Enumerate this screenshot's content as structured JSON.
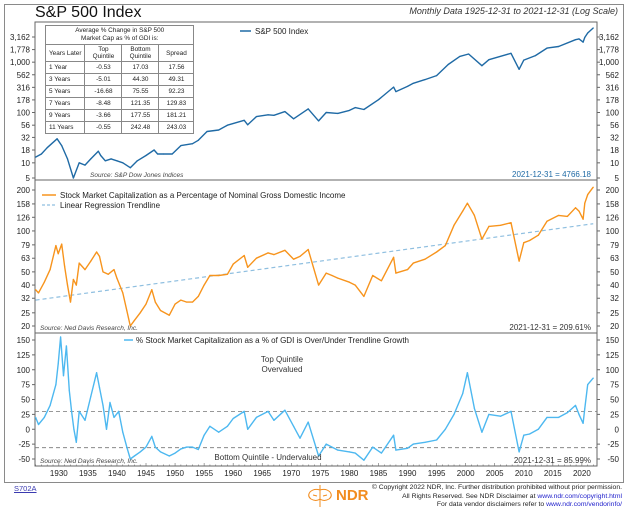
{
  "header": {
    "title": "S&P 500 Index",
    "subtitle": "Monthly Data 1925-12-31 to 2021-12-31 (Log Scale)"
  },
  "table": {
    "caption_line1": "Average % Change in S&P 500",
    "caption_line2": "Market Cap as % of GDI is:",
    "headers": [
      "Years Later",
      "Top Quintile",
      "Bottom Quintile",
      "Spread"
    ],
    "rows": [
      [
        "1 Year",
        "-0.53",
        "17.03",
        "17.56"
      ],
      [
        "3 Years",
        "-5.01",
        "44.30",
        "49.31"
      ],
      [
        "5 Years",
        "-16.68",
        "75.55",
        "92.23"
      ],
      [
        "7 Years",
        "-8.48",
        "121.35",
        "129.83"
      ],
      [
        "9 Years",
        "-3.66",
        "177.55",
        "181.21"
      ],
      [
        "11 Years",
        "-0.55",
        "242.48",
        "243.03"
      ]
    ]
  },
  "footer": {
    "chart_id": "S702A",
    "logo": "NDR",
    "copyright_line1": "© Copyright 2022 NDR, Inc. Further distribution prohibited without prior permission.",
    "copyright_line2_prefix": "All Rights Reserved. See NDR Disclaimer at ",
    "copyright_line2_link": "www.ndr.com/copyright.html",
    "copyright_line3_prefix": "For data vendor disclaimers refer to ",
    "copyright_line3_link": "www.ndr.com/vendorinfo/"
  },
  "colors": {
    "spx": "#1f6aa5",
    "mktcap": "#f7941d",
    "trend": "#8fbfe0",
    "deviation": "#4db8f0",
    "frame": "#8a8a8a"
  },
  "chart_data": [
    {
      "type": "line",
      "title": "S&P 500 Index",
      "scale": "log",
      "legend": [
        "S&P 500 Index"
      ],
      "legend_position": "top-center",
      "source": "Source: S&P Dow Jones Indices",
      "last_value_label": "2021-12-31 = 4766.18",
      "y_ticks": [
        5,
        10,
        18,
        32,
        56,
        100,
        178,
        316,
        562,
        1000,
        1778,
        3162
      ],
      "y_tick_labels": [
        "5",
        "10",
        "18",
        "32",
        "56",
        "100",
        "178",
        "316",
        "562",
        "1,000",
        "1,778",
        "3,162"
      ],
      "ylim": [
        4.2,
        5600
      ],
      "x": [
        1926,
        1927,
        1928,
        1929.7,
        1930.5,
        1931.5,
        1932.5,
        1933.5,
        1934.5,
        1935.5,
        1936.8,
        1937.2,
        1938,
        1939,
        1940,
        1941,
        1942.3,
        1943.5,
        1945,
        1946.4,
        1947,
        1948,
        1949.5,
        1951,
        1953,
        1954,
        1955.5,
        1957.5,
        1959,
        1961.9,
        1962.5,
        1964,
        1966,
        1967,
        1968.9,
        1970.4,
        1972.9,
        1974.7,
        1976,
        1978,
        1980,
        1981,
        1982.5,
        1985,
        1987.6,
        1988,
        1990,
        1991,
        1993,
        1995,
        1997,
        1999,
        2000.5,
        2002.8,
        2004,
        2007.8,
        2009.2,
        2010,
        2012,
        2014,
        2016,
        2018.9,
        2019.5,
        2020.2,
        2020.5,
        2021,
        2021.95
      ],
      "y": [
        13,
        15,
        20,
        30,
        22,
        12,
        5,
        10,
        9,
        12,
        17,
        14,
        11,
        12,
        11,
        10,
        8,
        11,
        14,
        18,
        15,
        15,
        15,
        22,
        24,
        28,
        42,
        45,
        56,
        70,
        57,
        83,
        90,
        88,
        104,
        75,
        118,
        68,
        100,
        96,
        110,
        125,
        115,
        180,
        320,
        260,
        330,
        380,
        450,
        540,
        900,
        1300,
        1450,
        850,
        1120,
        1500,
        720,
        1100,
        1350,
        1900,
        2050,
        2800,
        2900,
        2500,
        3100,
        3800,
        4766
      ]
    },
    {
      "type": "line",
      "title": "Stock Market Capitalization as a Percentage of Nominal Gross Domestic Income",
      "scale": "log",
      "legend": [
        "Stock Market Capitalization as a Percentage of Nominal Gross Domestic Income",
        "Linear Regression Trendline"
      ],
      "legend_position": "top-left",
      "source": "Source: Ned Davis Research, Inc.",
      "last_value_label": "2021-12-31 = 209.61%",
      "y_ticks": [
        20,
        25,
        32,
        40,
        50,
        63,
        79,
        100,
        126,
        158,
        200
      ],
      "y_tick_labels": [
        "20",
        "25",
        "32",
        "40",
        "50",
        "63",
        "79",
        "100",
        "126",
        "158",
        "200"
      ],
      "ylim": [
        18.5,
        215
      ],
      "trendline": {
        "x": [
          1926,
          2021.95
        ],
        "y": [
          31,
          113
        ]
      },
      "x": [
        1926,
        1926.5,
        1927.5,
        1928.5,
        1929.5,
        1929.9,
        1930.5,
        1931,
        1931.5,
        1932,
        1932.5,
        1933,
        1933.5,
        1934.5,
        1935.5,
        1936.5,
        1937,
        1937.6,
        1938.5,
        1939.5,
        1940,
        1941,
        1941.7,
        1942.3,
        1943,
        1944,
        1945,
        1946,
        1946.6,
        1947.5,
        1949,
        1950,
        1951,
        1952,
        1953,
        1954,
        1955,
        1956,
        1957.5,
        1959,
        1960,
        1961.9,
        1962.5,
        1964,
        1966,
        1967,
        1968.9,
        1970.4,
        1971.5,
        1972.9,
        1974.7,
        1976,
        1977,
        1978,
        1980,
        1981,
        1982.5,
        1984,
        1985.5,
        1987.6,
        1988,
        1990,
        1991,
        1993,
        1995,
        1996.5,
        1998,
        1999.5,
        2000.3,
        2001.5,
        2002.8,
        2004,
        2006,
        2007.8,
        2009.2,
        2010,
        2011,
        2012.5,
        2014,
        2016,
        2017.5,
        2018.9,
        2019.5,
        2020.2,
        2020.5,
        2021,
        2021.95
      ],
      "y": [
        37,
        35,
        42,
        52,
        78,
        68,
        80,
        55,
        40,
        30,
        44,
        40,
        58,
        52,
        60,
        70,
        65,
        50,
        48,
        52,
        45,
        35,
        26,
        20,
        22,
        25,
        29,
        37,
        30,
        26,
        24,
        29,
        31,
        30,
        30,
        33,
        40,
        47,
        47,
        48,
        57,
        66,
        54,
        63,
        69,
        67,
        72,
        62,
        65,
        73,
        40,
        49,
        47,
        45,
        42,
        40,
        33,
        47,
        43,
        64,
        49,
        52,
        58,
        62,
        70,
        78,
        110,
        140,
        160,
        130,
        87,
        108,
        110,
        115,
        60,
        82,
        85,
        93,
        118,
        130,
        128,
        148,
        140,
        122,
        160,
        185,
        209.61
      ]
    },
    {
      "type": "line",
      "title": "% Stock Market Capitalization as a % of GDI is Over/Under Trendline Growth",
      "scale": "linear",
      "legend": [
        "% Stock Market Capitalization as a % of GDI is Over/Under Trendline Growth"
      ],
      "legend_position": "top-center",
      "source": "Source: Ned Davis Research, Inc.",
      "last_value_label": "2021-12-31 = 85.99%",
      "annotations": [
        "Top Quintile",
        "Overvalued",
        "Bottom Quintile - Undervalued"
      ],
      "reference_lines": [
        {
          "y": 30,
          "style": "dashed"
        },
        {
          "y": -31,
          "style": "dashed"
        }
      ],
      "y_ticks": [
        -50,
        -25,
        0,
        25,
        50,
        75,
        100,
        125,
        150
      ],
      "y_tick_labels": [
        "-50",
        "-25",
        "0",
        "25",
        "50",
        "75",
        "100",
        "125",
        "150"
      ],
      "ylim": [
        -55,
        160
      ],
      "x_ticks": [
        1930,
        1935,
        1940,
        1945,
        1950,
        1955,
        1960,
        1965,
        1970,
        1975,
        1980,
        1985,
        1990,
        1995,
        2000,
        2005,
        2010,
        2015,
        2020
      ],
      "xlim": [
        1925.9,
        2022.6
      ],
      "x": [
        1926,
        1926.5,
        1927.5,
        1928.5,
        1929.5,
        1929.9,
        1930.3,
        1930.8,
        1931.3,
        1931.8,
        1932.2,
        1932.6,
        1933,
        1933.5,
        1934.5,
        1935.5,
        1936.5,
        1937,
        1937.6,
        1938.2,
        1938.8,
        1939.5,
        1940.3,
        1941,
        1941.7,
        1942.3,
        1943,
        1944,
        1945,
        1946,
        1946.6,
        1947.5,
        1949,
        1950,
        1951,
        1952,
        1953,
        1954,
        1955,
        1956,
        1957.5,
        1959,
        1960,
        1961.9,
        1962.5,
        1964,
        1966,
        1967,
        1968.9,
        1970.4,
        1971.5,
        1972.9,
        1974.7,
        1976,
        1977,
        1978,
        1980,
        1981,
        1982.5,
        1984,
        1985.5,
        1987.6,
        1988,
        1990,
        1991,
        1993,
        1995,
        1996.5,
        1998,
        1999.5,
        2000.3,
        2001.5,
        2002.8,
        2004,
        2006,
        2007.8,
        2009.2,
        2010,
        2011,
        2012.5,
        2014,
        2016,
        2017.5,
        2018.9,
        2019.5,
        2020.2,
        2020.5,
        2021,
        2021.95
      ],
      "y": [
        20,
        8,
        20,
        40,
        75,
        110,
        155,
        90,
        140,
        65,
        30,
        0,
        -22,
        30,
        15,
        55,
        95,
        70,
        40,
        0,
        45,
        20,
        30,
        -5,
        -30,
        -50,
        -45,
        -38,
        -30,
        -12,
        -30,
        -38,
        -45,
        -40,
        -33,
        -30,
        -30,
        -34,
        -10,
        5,
        -5,
        5,
        18,
        30,
        0,
        20,
        30,
        15,
        32,
        5,
        -15,
        12,
        -45,
        -25,
        -30,
        -35,
        -38,
        -40,
        -52,
        -30,
        -40,
        -10,
        -35,
        -32,
        -25,
        -22,
        -18,
        0,
        25,
        60,
        95,
        35,
        -5,
        25,
        22,
        30,
        -38,
        -10,
        -8,
        0,
        20,
        20,
        28,
        40,
        25,
        10,
        35,
        75,
        85.99
      ]
    }
  ]
}
